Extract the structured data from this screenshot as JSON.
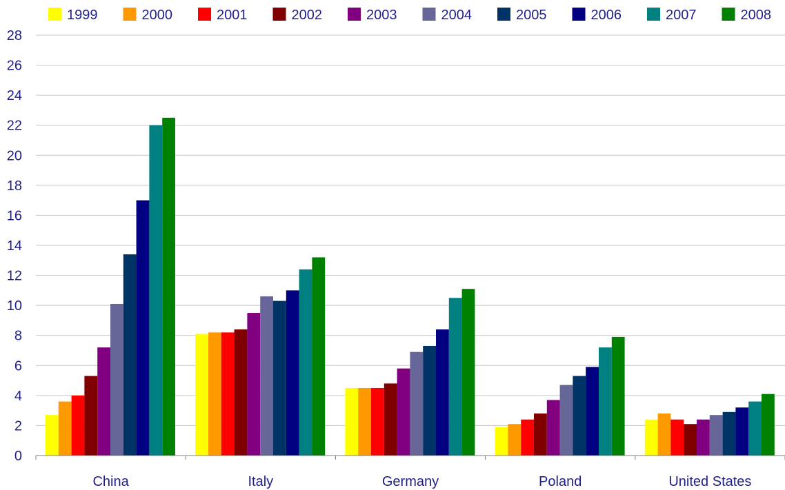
{
  "chart_data": {
    "type": "bar",
    "title": "",
    "xlabel": "",
    "ylabel": "",
    "ylim": [
      0,
      28
    ],
    "yticks": [
      "0",
      "2",
      "4",
      "6",
      "8",
      "10",
      "12",
      "14",
      "16",
      "18",
      "20",
      "22",
      "24",
      "26",
      "28"
    ],
    "grid": true,
    "legend_position": "top",
    "categories": [
      "China",
      "Italy",
      "Germany",
      "Poland",
      "United States"
    ],
    "series": [
      {
        "name": "1999",
        "color": "#ffff00",
        "values": [
          2.7,
          8.1,
          4.5,
          1.9,
          2.4
        ]
      },
      {
        "name": "2000",
        "color": "#ff9900",
        "values": [
          3.6,
          8.2,
          4.5,
          2.1,
          2.8
        ]
      },
      {
        "name": "2001",
        "color": "#ff0000",
        "values": [
          4.0,
          8.2,
          4.5,
          2.4,
          2.4
        ]
      },
      {
        "name": "2002",
        "color": "#800000",
        "values": [
          5.3,
          8.4,
          4.8,
          2.8,
          2.1
        ]
      },
      {
        "name": "2003",
        "color": "#800080",
        "values": [
          7.2,
          9.5,
          5.8,
          3.7,
          2.4
        ]
      },
      {
        "name": "2004",
        "color": "#666699",
        "values": [
          10.1,
          10.6,
          6.9,
          4.7,
          2.7
        ]
      },
      {
        "name": "2005",
        "color": "#003366",
        "values": [
          13.4,
          10.3,
          7.3,
          5.3,
          2.9
        ]
      },
      {
        "name": "2006",
        "color": "#000080",
        "values": [
          17.0,
          11.0,
          8.4,
          5.9,
          3.2
        ]
      },
      {
        "name": "2007",
        "color": "#008080",
        "values": [
          22.0,
          12.4,
          10.5,
          7.2,
          3.6
        ]
      },
      {
        "name": "2008",
        "color": "#008000",
        "values": [
          22.5,
          13.2,
          11.1,
          7.9,
          4.1
        ]
      }
    ]
  }
}
